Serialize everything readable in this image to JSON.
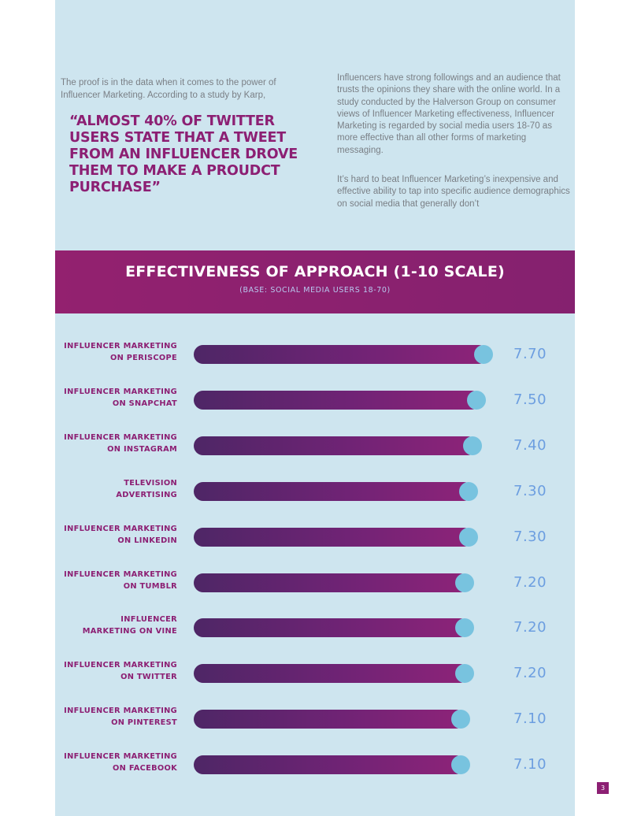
{
  "intro": {
    "left_text": "The proof is in the data when it comes to the power of Influencer Marketing. According to a study by Karp,",
    "quote": "“Almost 40% of Twitter users state that a tweet from an influencer drove them to make a proudct purchase”",
    "right_para1": "Influencers have strong followings and an audience that trusts the opinions they share with the online world. In a study conducted by the Halverson Group on consumer views of Influencer Marketing effectiveness, Influencer Marketing is regarded by social media users 18-70 as more effective than all other forms of marketing messaging.",
    "right_para2": "It’s hard to beat Influencer Marketing’s inexpensive and effective ability to tap into specific audience demographics on social media that generally don’t"
  },
  "colors": {
    "panel": "#cee5ef",
    "accent": "#8c1f73",
    "bar_start": "#4e2666",
    "bar_end": "#8e2379",
    "dot": "#78c3df",
    "value_text": "#6c9ee0"
  },
  "chart_data": {
    "type": "bar",
    "orientation": "horizontal",
    "title": "EFFECTIVENESS OF APPROACH (1-10 SCALE)",
    "subtitle": "(BASE: SOCIAL MEDIA USERS 18-70)",
    "categories": [
      [
        "INFLUENCER MARKETING",
        "ON PERISCOPE"
      ],
      [
        "INFLUENCER MARKETING",
        "ON SNAPCHAT"
      ],
      [
        "INFLUENCER MARKETING",
        "ON INSTAGRAM"
      ],
      [
        "TELEVISION",
        "ADVERTISING"
      ],
      [
        "INFLUENCER MARKETING",
        "ON LINKEDIN"
      ],
      [
        "INFLUENCER MARKETING",
        "ON TUMBLR"
      ],
      [
        "INFLUENCER",
        "MARKETING ON VINE"
      ],
      [
        "INFLUENCER MARKETING",
        "ON TWITTER"
      ],
      [
        "INFLUENCER MARKETING",
        "ON PINTEREST"
      ],
      [
        "INFLUENCER MARKETING",
        "ON FACEBOOK"
      ]
    ],
    "values": [
      7.7,
      7.5,
      7.4,
      7.3,
      7.3,
      7.2,
      7.2,
      7.2,
      7.1,
      7.1
    ],
    "value_labels": [
      "7.70",
      "7.50",
      "7.40",
      "7.30",
      "7.30",
      "7.20",
      "7.20",
      "7.20",
      "7.10",
      "7.10"
    ],
    "xlim": [
      0,
      10
    ]
  },
  "footer": {
    "page_number": "3"
  }
}
